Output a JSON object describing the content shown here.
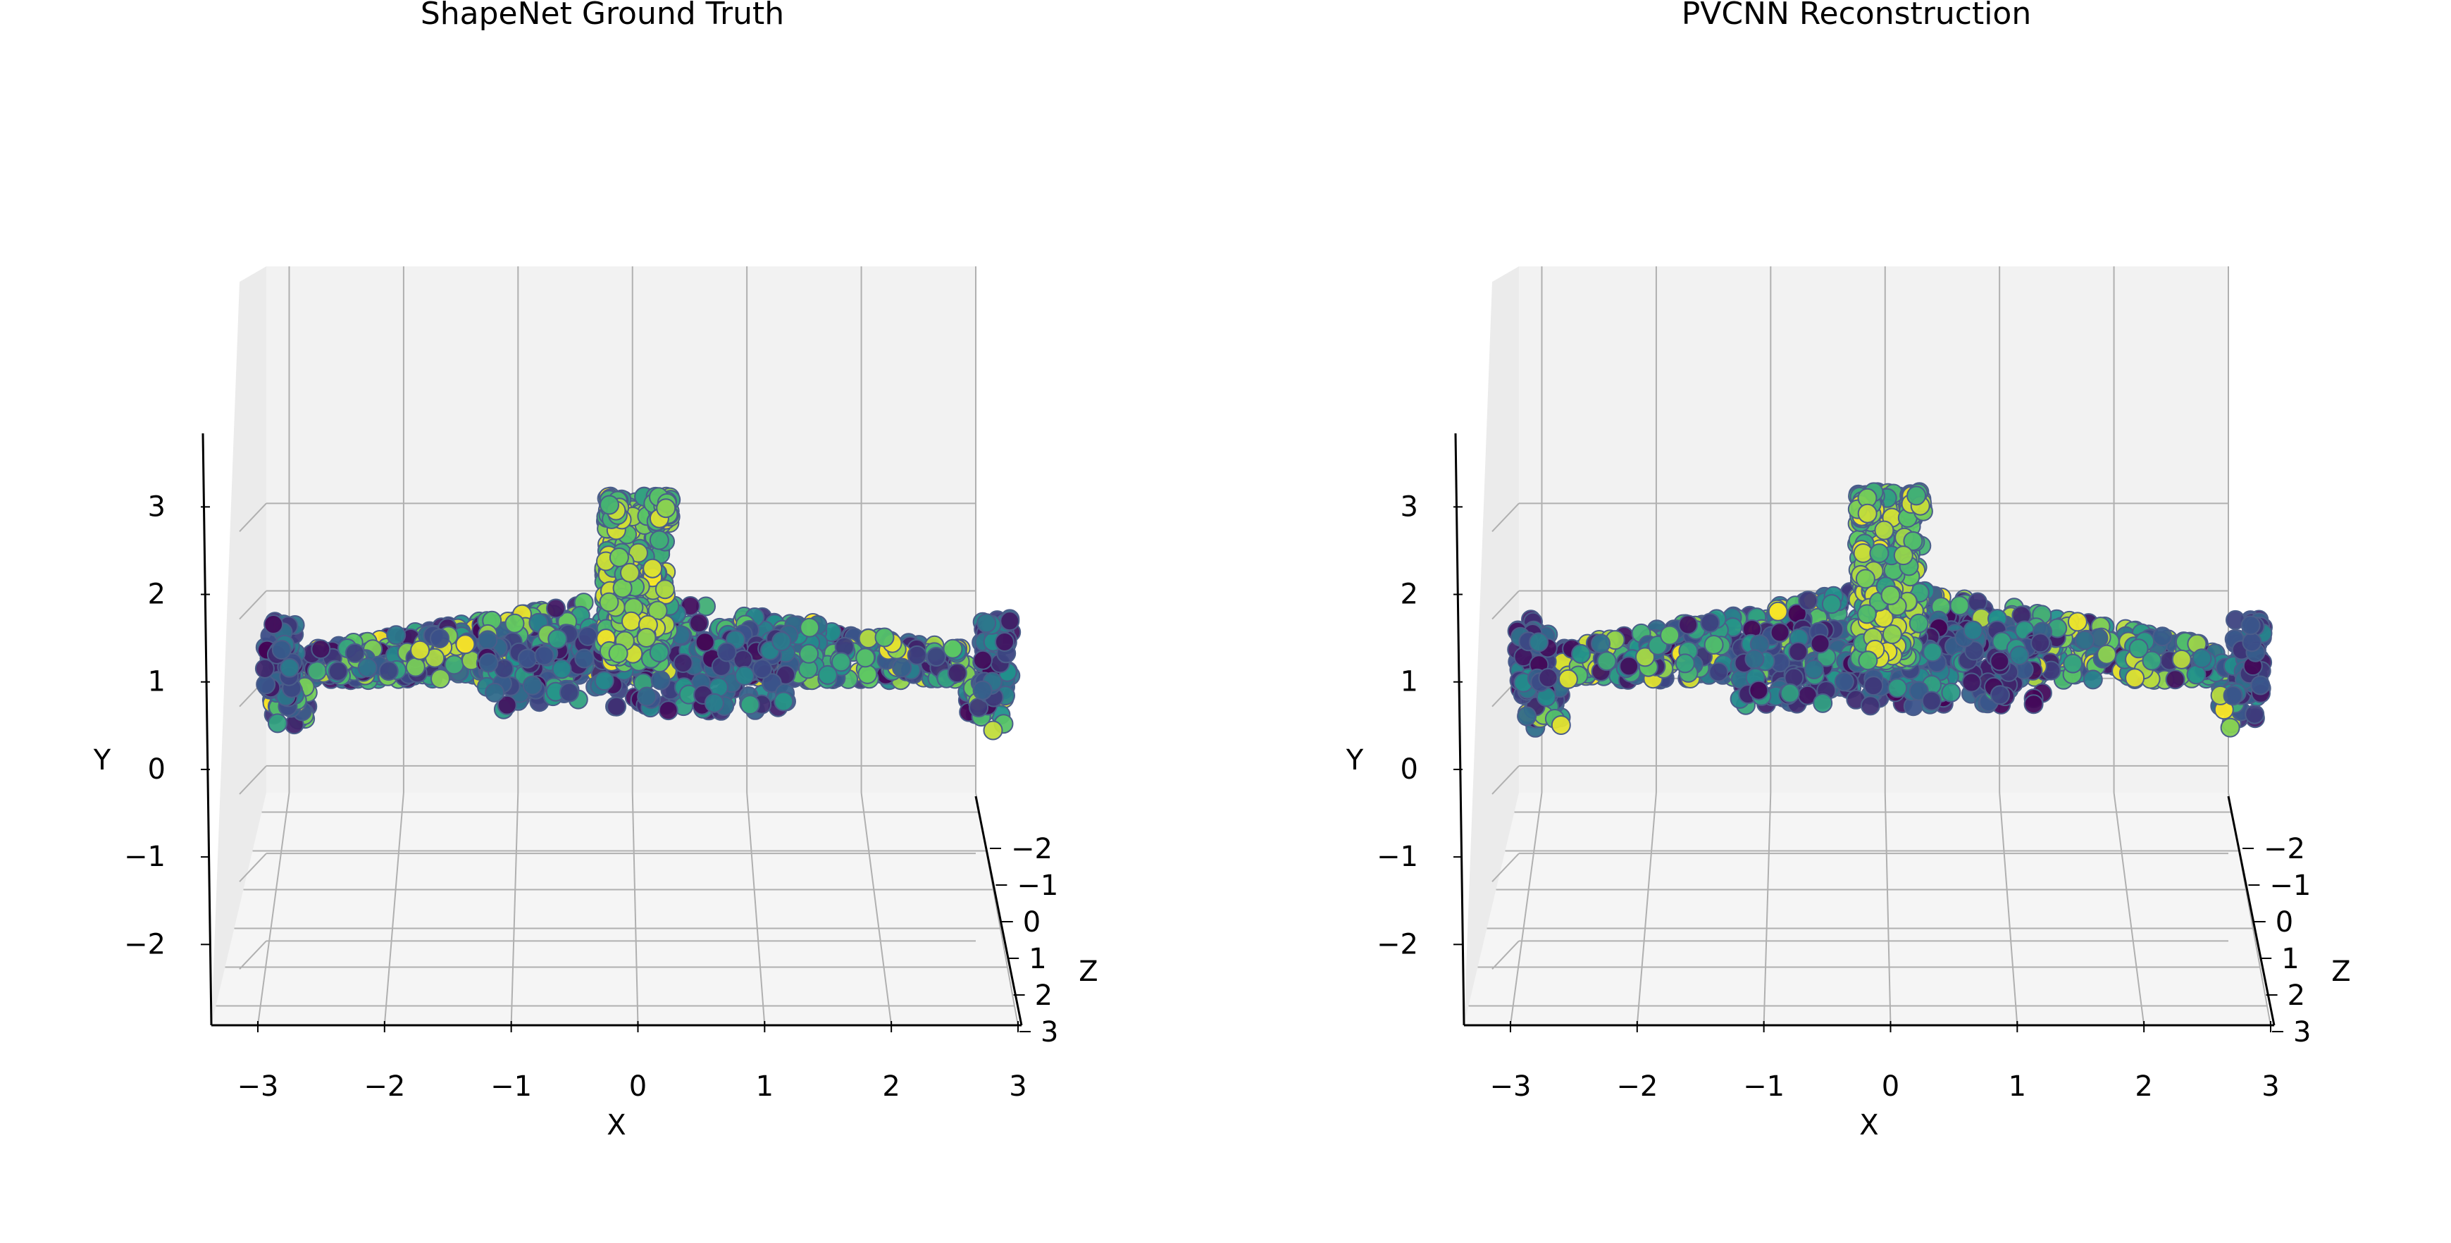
{
  "figure": {
    "panels": [
      {
        "id": "gt",
        "title": "ShapeNet Ground Truth"
      },
      {
        "id": "recon",
        "title": "PVCNN Reconstruction"
      }
    ]
  },
  "chart_data": [
    {
      "type": "scatter",
      "projection": "3d",
      "title": "ShapeNet Ground Truth",
      "xlabel": "X",
      "ylabel": "Y",
      "zlabel": "Z",
      "xlim": [
        -3.2,
        3.0
      ],
      "ylim": [
        -2.4,
        3.8
      ],
      "zlim": [
        -3.0,
        3.0
      ],
      "x_ticks": [
        -3,
        -2,
        -1,
        0,
        1,
        2,
        3
      ],
      "y_ticks": [
        -2,
        -1,
        0,
        1,
        2,
        3
      ],
      "z_ticks": [
        -2,
        -1,
        0,
        1,
        2,
        3
      ],
      "x_tick_labels": [
        "−3",
        "−2",
        "−1",
        "0",
        "1",
        "2",
        "3"
      ],
      "y_tick_labels": [
        "−2",
        "−1",
        "0",
        "1",
        "2",
        "3"
      ],
      "z_tick_labels": [
        "−2",
        "−1",
        "0",
        "1",
        "2",
        "3"
      ],
      "colormap": "viridis",
      "grid": true,
      "shape": {
        "wing_span": [
          -2.9,
          2.9
        ],
        "wing_y": [
          1.1,
          2.1
        ],
        "wing_tip_droop_y": 0.9,
        "fin_x": [
          -0.28,
          0.28
        ],
        "fin_y": [
          1.3,
          3.2
        ],
        "fuselage_y_min": 0.75
      }
    },
    {
      "type": "scatter",
      "projection": "3d",
      "title": "PVCNN Reconstruction",
      "xlabel": "X",
      "ylabel": "Y",
      "zlabel": "Z",
      "xlim": [
        -3.2,
        3.0
      ],
      "ylim": [
        -2.4,
        3.8
      ],
      "zlim": [
        -3.0,
        3.0
      ],
      "x_ticks": [
        -3,
        -2,
        -1,
        0,
        1,
        2,
        3
      ],
      "y_ticks": [
        -2,
        -1,
        0,
        1,
        2,
        3
      ],
      "z_ticks": [
        -2,
        -1,
        0,
        1,
        2,
        3
      ],
      "x_tick_labels": [
        "−3",
        "−2",
        "−1",
        "0",
        "1",
        "2",
        "3"
      ],
      "y_tick_labels": [
        "−2",
        "−1",
        "0",
        "1",
        "2",
        "3"
      ],
      "z_tick_labels": [
        "−2",
        "−1",
        "0",
        "1",
        "2",
        "3"
      ],
      "colormap": "viridis",
      "grid": true,
      "shape": {
        "wing_span": [
          -2.9,
          2.9
        ],
        "wing_y": [
          1.1,
          2.2
        ],
        "wing_tip_droop_y": 0.9,
        "fin_x": [
          -0.28,
          0.28
        ],
        "fin_y": [
          1.3,
          3.25
        ],
        "fuselage_y_min": 0.8
      }
    }
  ]
}
